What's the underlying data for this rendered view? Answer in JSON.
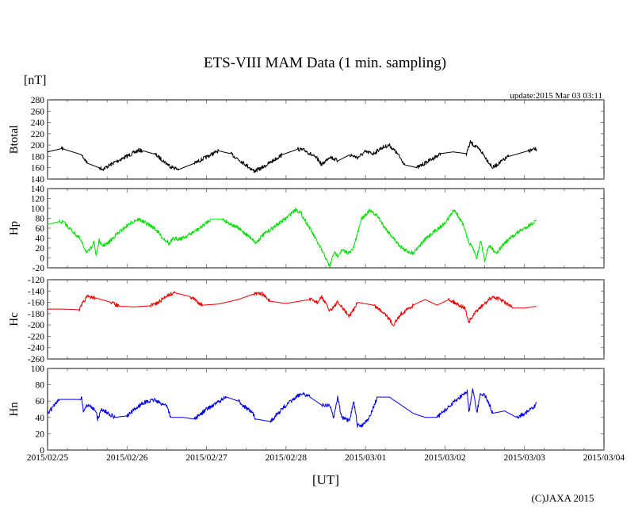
{
  "chart_data": {
    "type": "line",
    "title": "ETS-VIII MAM Data (1 min. sampling)",
    "unit_label": "[nT]",
    "update_text": "update:2015 Mar 03 03:11",
    "xlabel": "[UT]",
    "copyright": "(C)JAXA 2015",
    "x_unit": "days since 2015/02/25 00:00 UT",
    "xlim": [
      0,
      7
    ],
    "x_tick_labels": [
      "2015/02/25",
      "2015/02/26",
      "2015/02/27",
      "2015/02/28",
      "2015/03/01",
      "2015/03/02",
      "2015/03/03",
      "2015/03/04"
    ],
    "panels": [
      {
        "name": "Btotal",
        "color": "#000000",
        "ylim": [
          140,
          280
        ],
        "yticks": [
          140,
          160,
          180,
          200,
          220,
          240,
          260,
          280
        ],
        "x": [
          0,
          0.18,
          0.2,
          0.43,
          0.5,
          0.65,
          0.7,
          0.85,
          1.15,
          1.2,
          1.35,
          1.55,
          1.65,
          1.85,
          2.15,
          2.3,
          2.45,
          2.6,
          2.7,
          2.95,
          3.15,
          3.25,
          3.4,
          3.45,
          3.55,
          3.65,
          3.8,
          3.9,
          4.0,
          4.1,
          4.2,
          4.3,
          4.4,
          4.5,
          4.65,
          4.95,
          5.1,
          5.27,
          5.32,
          5.45,
          5.6,
          5.8,
          6.05,
          6.15
        ],
        "y": [
          188,
          194,
          193,
          183,
          168,
          160,
          158,
          170,
          191,
          190,
          184,
          162,
          157,
          168,
          190,
          185,
          170,
          154,
          160,
          183,
          193,
          190,
          175,
          165,
          180,
          172,
          183,
          178,
          188,
          185,
          195,
          200,
          185,
          165,
          160,
          185,
          188,
          185,
          205,
          190,
          160,
          180,
          190,
          193
        ]
      },
      {
        "name": "Hp",
        "color": "#00e000",
        "ylim": [
          -20,
          140
        ],
        "yticks": [
          -20,
          0,
          20,
          40,
          60,
          80,
          100,
          120,
          140
        ],
        "x": [
          0,
          0.15,
          0.2,
          0.4,
          0.5,
          0.55,
          0.58,
          0.61,
          0.65,
          0.68,
          0.75,
          0.85,
          1.0,
          1.1,
          1.15,
          1.35,
          1.45,
          1.5,
          1.53,
          1.58,
          1.7,
          1.9,
          2.05,
          2.2,
          2.4,
          2.58,
          2.62,
          2.7,
          3.0,
          3.12,
          3.18,
          3.3,
          3.4,
          3.5,
          3.55,
          3.6,
          3.65,
          3.7,
          3.8,
          3.85,
          3.95,
          4.05,
          4.15,
          4.25,
          4.4,
          4.5,
          4.6,
          4.65,
          4.8,
          5.0,
          5.12,
          5.25,
          5.3,
          5.35,
          5.4,
          5.45,
          5.5,
          5.55,
          5.65,
          5.75,
          5.9,
          6.05,
          6.15
        ],
        "y": [
          68,
          73,
          72,
          40,
          10,
          20,
          35,
          5,
          35,
          25,
          28,
          45,
          65,
          76,
          78,
          60,
          40,
          35,
          28,
          38,
          40,
          58,
          78,
          78,
          60,
          38,
          30,
          45,
          80,
          98,
          92,
          60,
          30,
          0,
          -18,
          10,
          5,
          15,
          10,
          20,
          80,
          95,
          85,
          60,
          30,
          15,
          10,
          20,
          45,
          70,
          98,
          60,
          30,
          20,
          0,
          35,
          -5,
          25,
          10,
          30,
          50,
          65,
          75
        ]
      },
      {
        "name": "Hc",
        "color": "#ee0000",
        "ylim": [
          -260,
          -120
        ],
        "yticks": [
          -260,
          -240,
          -220,
          -200,
          -180,
          -160,
          -140,
          -120
        ],
        "x": [
          0,
          0.2,
          0.4,
          0.45,
          0.5,
          0.6,
          0.8,
          0.9,
          1.1,
          1.3,
          1.4,
          1.5,
          1.6,
          1.8,
          1.95,
          2.15,
          2.4,
          2.6,
          2.7,
          2.8,
          3.0,
          3.3,
          3.4,
          3.45,
          3.55,
          3.65,
          3.8,
          3.9,
          4.1,
          4.25,
          4.35,
          4.45,
          4.6,
          4.75,
          4.9,
          5.05,
          5.25,
          5.3,
          5.4,
          5.52,
          5.6,
          5.7,
          5.85,
          6.0,
          6.15
        ],
        "y": [
          -172,
          -172,
          -173,
          -160,
          -150,
          -152,
          -160,
          -167,
          -168,
          -166,
          -160,
          -148,
          -143,
          -150,
          -165,
          -163,
          -155,
          -145,
          -145,
          -158,
          -162,
          -155,
          -160,
          -150,
          -175,
          -160,
          -185,
          -160,
          -165,
          -180,
          -200,
          -180,
          -165,
          -155,
          -165,
          -155,
          -170,
          -195,
          -175,
          -160,
          -150,
          -155,
          -170,
          -170,
          -167
        ]
      },
      {
        "name": "Hn",
        "color": "#0000ee",
        "ylim": [
          0,
          100
        ],
        "yticks": [
          0,
          20,
          40,
          60,
          80,
          100
        ],
        "x": [
          0,
          0.15,
          0.4,
          0.43,
          0.45,
          0.5,
          0.6,
          0.63,
          0.68,
          0.8,
          0.85,
          1.0,
          1.2,
          1.3,
          1.35,
          1.4,
          1.5,
          1.55,
          1.7,
          1.85,
          2.0,
          2.25,
          2.4,
          2.58,
          2.62,
          2.8,
          3.0,
          3.2,
          3.3,
          3.45,
          3.55,
          3.6,
          3.65,
          3.7,
          3.8,
          3.85,
          3.9,
          3.95,
          4.05,
          4.15,
          4.3,
          4.45,
          4.6,
          4.75,
          4.9,
          5.15,
          5.28,
          5.3,
          5.35,
          5.4,
          5.45,
          5.52,
          5.6,
          5.75,
          5.9,
          6.0,
          6.12,
          6.15
        ],
        "y": [
          45,
          62,
          62,
          65,
          48,
          55,
          50,
          38,
          50,
          43,
          40,
          42,
          58,
          60,
          62,
          58,
          55,
          40,
          40,
          38,
          50,
          65,
          60,
          45,
          38,
          35,
          55,
          70,
          65,
          55,
          55,
          40,
          65,
          40,
          35,
          60,
          30,
          30,
          40,
          65,
          65,
          55,
          45,
          40,
          40,
          62,
          72,
          45,
          75,
          45,
          70,
          65,
          45,
          48,
          40,
          45,
          52,
          58
        ]
      }
    ]
  }
}
